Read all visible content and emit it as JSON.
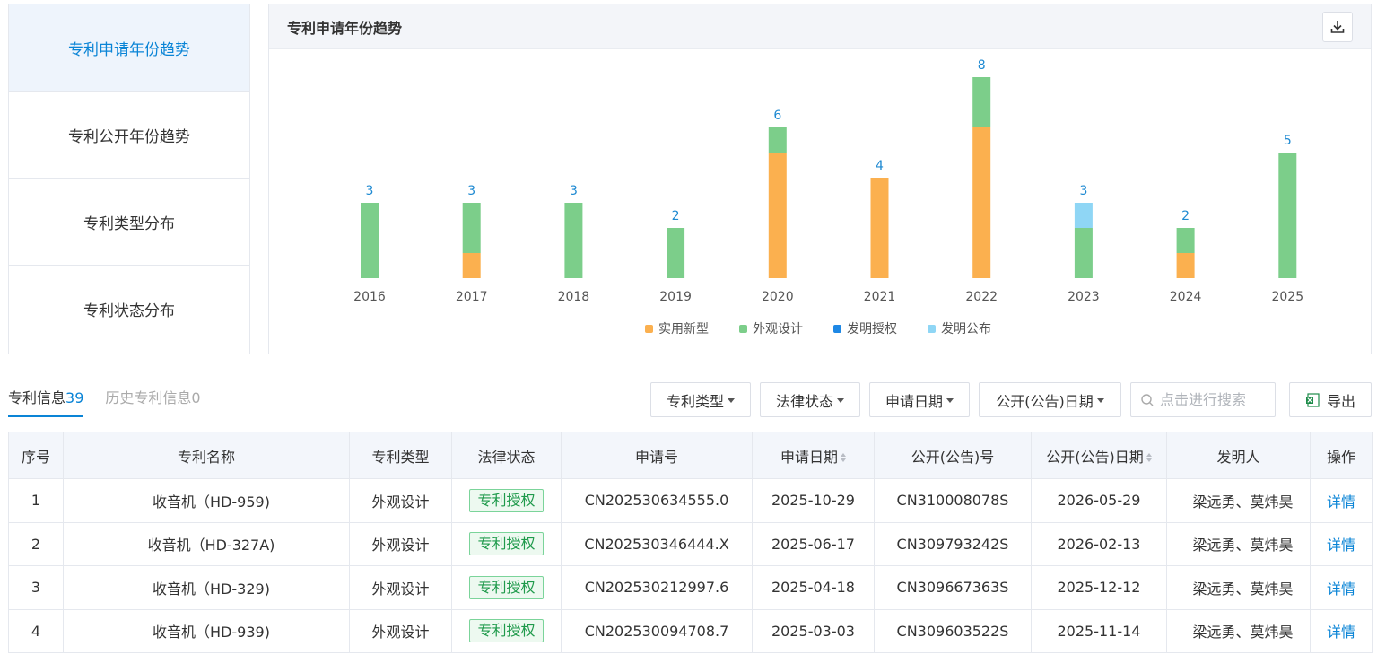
{
  "sidebar": {
    "items": [
      {
        "label": "专利申请年份趋势",
        "active": true
      },
      {
        "label": "专利公开年份趋势",
        "active": false
      },
      {
        "label": "专利类型分布",
        "active": false
      },
      {
        "label": "专利状态分布",
        "active": false
      }
    ]
  },
  "chart_panel": {
    "title": "专利申请年份趋势",
    "download_icon": "download-icon"
  },
  "chart_data": {
    "type": "bar",
    "stacked": true,
    "title": "专利申请年份趋势",
    "categories": [
      "2016",
      "2017",
      "2018",
      "2019",
      "2020",
      "2021",
      "2022",
      "2023",
      "2024",
      "2025"
    ],
    "series": [
      {
        "name": "实用新型",
        "color": "#fbb04f",
        "values": [
          0,
          1,
          0,
          0,
          5,
          4,
          6,
          0,
          1,
          0
        ]
      },
      {
        "name": "外观设计",
        "color": "#7cce8a",
        "values": [
          3,
          2,
          3,
          2,
          1,
          0,
          2,
          2,
          1,
          5
        ]
      },
      {
        "name": "发明授权",
        "color": "#1e88e5",
        "values": [
          0,
          0,
          0,
          0,
          0,
          0,
          0,
          0,
          0,
          0
        ]
      },
      {
        "name": "发明公布",
        "color": "#8fd6f5",
        "values": [
          0,
          0,
          0,
          0,
          0,
          0,
          0,
          1,
          0,
          0
        ]
      }
    ],
    "totals": [
      "3",
      "3",
      "3",
      "2",
      "6",
      "4",
      "8",
      "3",
      "2",
      "5"
    ],
    "ylim": [
      0,
      8
    ],
    "legend_position": "bottom",
    "grid": false
  },
  "tabs": [
    {
      "label": "专利信息",
      "count": "39",
      "active": true
    },
    {
      "label": "历史专利信息",
      "count": "0",
      "active": false
    }
  ],
  "filters": {
    "patent_type": "专利类型",
    "legal_status": "法律状态",
    "apply_date": "申请日期",
    "publish_date": "公开(公告)日期"
  },
  "search": {
    "placeholder": "点击进行搜索"
  },
  "export": {
    "label": "导出"
  },
  "table": {
    "headers": {
      "index": "序号",
      "name": "专利名称",
      "type": "专利类型",
      "status": "法律状态",
      "app_no": "申请号",
      "app_date": "申请日期",
      "pub_no": "公开(公告)号",
      "pub_date": "公开(公告)日期",
      "inventor": "发明人",
      "action": "操作"
    },
    "rows": [
      {
        "index": "1",
        "name": "收音机（HD-959)",
        "type": "外观设计",
        "status": "专利授权",
        "app_no": "CN202530634555.0",
        "app_date": "2025-10-29",
        "pub_no": "CN310008078S",
        "pub_date": "2026-05-29",
        "inventor": "梁远勇、莫炜昊",
        "action": "详情"
      },
      {
        "index": "2",
        "name": "收音机（HD-327A)",
        "type": "外观设计",
        "status": "专利授权",
        "app_no": "CN202530346444.X",
        "app_date": "2025-06-17",
        "pub_no": "CN309793242S",
        "pub_date": "2026-02-13",
        "inventor": "梁远勇、莫炜昊",
        "action": "详情"
      },
      {
        "index": "3",
        "name": "收音机（HD-329)",
        "type": "外观设计",
        "status": "专利授权",
        "app_no": "CN202530212997.6",
        "app_date": "2025-04-18",
        "pub_no": "CN309667363S",
        "pub_date": "2025-12-12",
        "inventor": "梁远勇、莫炜昊",
        "action": "详情"
      },
      {
        "index": "4",
        "name": "收音机（HD-939)",
        "type": "外观设计",
        "status": "专利授权",
        "app_no": "CN202530094708.7",
        "app_date": "2025-03-03",
        "pub_no": "CN309603522S",
        "pub_date": "2025-11-14",
        "inventor": "梁远勇、莫炜昊",
        "action": "详情"
      }
    ]
  }
}
